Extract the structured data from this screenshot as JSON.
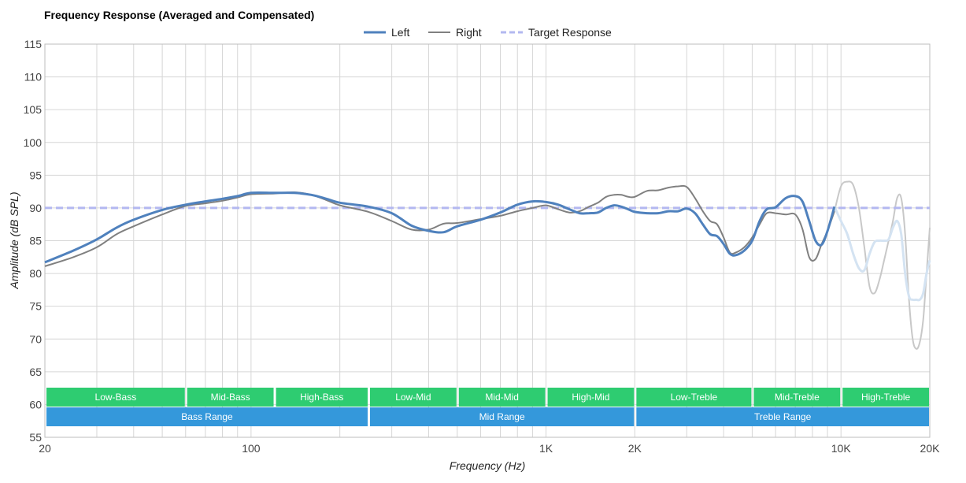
{
  "chart_data": {
    "type": "line",
    "title": "Frequency Response (Averaged and Compensated)",
    "xlabel": "Frequency (Hz)",
    "ylabel": "Amplitude (dB SPL)",
    "x_scale": "log",
    "xlim": [
      20,
      20000
    ],
    "ylim": [
      55,
      115
    ],
    "x_ticks": [
      {
        "value": 20,
        "label": "20"
      },
      {
        "value": 100,
        "label": "100"
      },
      {
        "value": 1000,
        "label": "1K"
      },
      {
        "value": 2000,
        "label": "2K"
      },
      {
        "value": 10000,
        "label": "10K"
      },
      {
        "value": 20000,
        "label": "20K"
      }
    ],
    "y_ticks": [
      55,
      60,
      65,
      70,
      75,
      80,
      85,
      90,
      95,
      100,
      105,
      110,
      115
    ],
    "grid": true,
    "legend_position": "top-center",
    "series": [
      {
        "name": "Left",
        "color": "#4f81bd",
        "style": "solid",
        "points": [
          [
            20,
            81.7
          ],
          [
            25,
            83.5
          ],
          [
            30,
            85.2
          ],
          [
            35,
            87
          ],
          [
            40,
            88.2
          ],
          [
            50,
            89.7
          ],
          [
            60,
            90.5
          ],
          [
            70,
            91
          ],
          [
            80,
            91.4
          ],
          [
            90,
            91.8
          ],
          [
            100,
            92.3
          ],
          [
            120,
            92.3
          ],
          [
            140,
            92.3
          ],
          [
            160,
            92
          ],
          [
            180,
            91.4
          ],
          [
            200,
            90.8
          ],
          [
            250,
            90.2
          ],
          [
            300,
            89.2
          ],
          [
            350,
            87.3
          ],
          [
            400,
            86.5
          ],
          [
            450,
            86.3
          ],
          [
            500,
            87.2
          ],
          [
            600,
            88.2
          ],
          [
            700,
            89.3
          ],
          [
            800,
            90.5
          ],
          [
            900,
            91
          ],
          [
            1000,
            90.9
          ],
          [
            1100,
            90.5
          ],
          [
            1200,
            89.8
          ],
          [
            1300,
            89.2
          ],
          [
            1400,
            89.2
          ],
          [
            1500,
            89.3
          ],
          [
            1600,
            90
          ],
          [
            1700,
            90.4
          ],
          [
            1800,
            90.2
          ],
          [
            1900,
            89.8
          ],
          [
            2000,
            89.4
          ],
          [
            2200,
            89.2
          ],
          [
            2400,
            89.2
          ],
          [
            2600,
            89.5
          ],
          [
            2800,
            89.5
          ],
          [
            3000,
            89.9
          ],
          [
            3200,
            89.2
          ],
          [
            3400,
            87.5
          ],
          [
            3600,
            86
          ],
          [
            3800,
            85.7
          ],
          [
            4000,
            84.5
          ],
          [
            4200,
            83
          ],
          [
            4400,
            82.8
          ],
          [
            4700,
            83.5
          ],
          [
            5000,
            85
          ],
          [
            5300,
            88
          ],
          [
            5600,
            89.8
          ],
          [
            6000,
            90.1
          ],
          [
            6500,
            91.5
          ],
          [
            7000,
            91.8
          ],
          [
            7400,
            91
          ],
          [
            7800,
            88
          ],
          [
            8200,
            85
          ],
          [
            8600,
            84.4
          ],
          [
            9000,
            86.5
          ],
          [
            9500,
            90.2
          ]
        ],
        "faded_points": [
          [
            9500,
            90.2
          ],
          [
            10000,
            88
          ],
          [
            10500,
            86
          ],
          [
            11000,
            83
          ],
          [
            11500,
            80.8
          ],
          [
            12000,
            80.5
          ],
          [
            12500,
            83
          ],
          [
            13000,
            84.8
          ],
          [
            13500,
            85
          ],
          [
            14000,
            85
          ],
          [
            14500,
            85.2
          ],
          [
            15000,
            87
          ],
          [
            15500,
            88
          ],
          [
            16000,
            86
          ],
          [
            16500,
            80
          ],
          [
            17000,
            76.5
          ],
          [
            17500,
            76
          ],
          [
            18000,
            76
          ],
          [
            18500,
            76
          ],
          [
            19000,
            77
          ],
          [
            19500,
            80
          ],
          [
            20000,
            82
          ]
        ]
      },
      {
        "name": "Right",
        "color": "#808080",
        "style": "solid",
        "points": [
          [
            20,
            81.1
          ],
          [
            25,
            82.5
          ],
          [
            30,
            84
          ],
          [
            35,
            86
          ],
          [
            40,
            87.2
          ],
          [
            50,
            89
          ],
          [
            60,
            90.3
          ],
          [
            70,
            90.7
          ],
          [
            80,
            91.1
          ],
          [
            90,
            91.6
          ],
          [
            100,
            92.1
          ],
          [
            120,
            92.2
          ],
          [
            140,
            92.4
          ],
          [
            160,
            92
          ],
          [
            180,
            91.2
          ],
          [
            200,
            90.4
          ],
          [
            250,
            89.4
          ],
          [
            300,
            88
          ],
          [
            350,
            86.7
          ],
          [
            400,
            86.7
          ],
          [
            450,
            87.6
          ],
          [
            500,
            87.7
          ],
          [
            600,
            88.3
          ],
          [
            700,
            88.8
          ],
          [
            800,
            89.5
          ],
          [
            900,
            90
          ],
          [
            1000,
            90.4
          ],
          [
            1100,
            89.8
          ],
          [
            1200,
            89.3
          ],
          [
            1300,
            89.5
          ],
          [
            1400,
            90.2
          ],
          [
            1500,
            90.8
          ],
          [
            1600,
            91.7
          ],
          [
            1700,
            92
          ],
          [
            1800,
            92
          ],
          [
            1900,
            91.7
          ],
          [
            2000,
            91.7
          ],
          [
            2200,
            92.6
          ],
          [
            2400,
            92.7
          ],
          [
            2600,
            93.1
          ],
          [
            2800,
            93.3
          ],
          [
            3000,
            93.2
          ],
          [
            3200,
            91.5
          ],
          [
            3400,
            89.5
          ],
          [
            3600,
            88
          ],
          [
            3800,
            87.5
          ],
          [
            4000,
            85.5
          ],
          [
            4200,
            83.2
          ],
          [
            4400,
            83.2
          ],
          [
            4700,
            84
          ],
          [
            5000,
            85.5
          ],
          [
            5300,
            87.5
          ],
          [
            5600,
            89.2
          ],
          [
            6000,
            89.2
          ],
          [
            6500,
            89
          ],
          [
            7000,
            89
          ],
          [
            7400,
            86.8
          ],
          [
            7800,
            82.5
          ],
          [
            8200,
            82.2
          ],
          [
            8600,
            84.5
          ],
          [
            9000,
            86.5
          ],
          [
            9500,
            89.5
          ]
        ],
        "faded_points": [
          [
            9500,
            89.5
          ],
          [
            10000,
            93.3
          ],
          [
            10500,
            94
          ],
          [
            11000,
            93.5
          ],
          [
            11500,
            90
          ],
          [
            12000,
            84
          ],
          [
            12500,
            78
          ],
          [
            13000,
            77
          ],
          [
            13500,
            79
          ],
          [
            14000,
            82
          ],
          [
            14500,
            85
          ],
          [
            15000,
            88
          ],
          [
            15500,
            91.5
          ],
          [
            16000,
            91.5
          ],
          [
            16500,
            86
          ],
          [
            17000,
            76
          ],
          [
            17500,
            70
          ],
          [
            18000,
            68.5
          ],
          [
            18500,
            69.5
          ],
          [
            19000,
            73
          ],
          [
            19500,
            80
          ],
          [
            20000,
            87
          ]
        ]
      },
      {
        "name": "Target Response",
        "color": "#b3b8f0",
        "style": "dashed",
        "points": [
          [
            20,
            90
          ],
          [
            20000,
            90
          ]
        ]
      }
    ],
    "range_bands": {
      "sub_ranges": [
        {
          "label": "Low-Bass",
          "from": 20,
          "to": 60
        },
        {
          "label": "Mid-Bass",
          "from": 60,
          "to": 120
        },
        {
          "label": "High-Bass",
          "from": 120,
          "to": 250
        },
        {
          "label": "Low-Mid",
          "from": 250,
          "to": 500
        },
        {
          "label": "Mid-Mid",
          "from": 500,
          "to": 1000
        },
        {
          "label": "High-Mid",
          "from": 1000,
          "to": 2000
        },
        {
          "label": "Low-Treble",
          "from": 2000,
          "to": 5000
        },
        {
          "label": "Mid-Treble",
          "from": 5000,
          "to": 10000
        },
        {
          "label": "High-Treble",
          "from": 10000,
          "to": 20000
        }
      ],
      "main_ranges": [
        {
          "label": "Bass Range",
          "from": 20,
          "to": 250
        },
        {
          "label": "Mid Range",
          "from": 250,
          "to": 2000
        },
        {
          "label": "Treble Range",
          "from": 2000,
          "to": 20000
        }
      ],
      "sub_color": "#2ecc71",
      "main_color": "#3498db"
    }
  }
}
